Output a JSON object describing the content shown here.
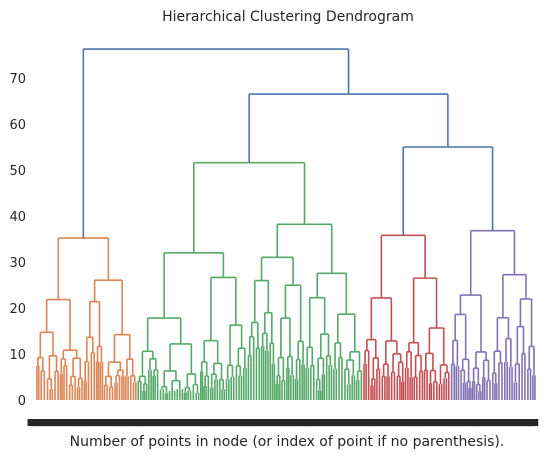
{
  "chart_data": {
    "type": "dendrogram",
    "title": "Hierarchical Clustering Dendrogram",
    "xlabel": "Number of points in node (or index of point if no parenthesis).",
    "ylabel": "",
    "ylim": [
      0,
      77
    ],
    "yticks": [
      0,
      10,
      20,
      30,
      40,
      50,
      60,
      70
    ],
    "grid": false,
    "colors": {
      "above_threshold": "#4c72b0",
      "cluster_1": "#dd8452",
      "cluster_2": "#55a868",
      "cluster_3": "#c44e52",
      "cluster_4": "#8172b3"
    },
    "top_merges": [
      {
        "children": [
          "cluster_1",
          "root_right"
        ],
        "height": 76.3
      },
      {
        "children": [
          "cluster_2",
          "cluster_3_4"
        ],
        "height": 66.5
      },
      {
        "children": [
          "cluster_3",
          "cluster_4"
        ],
        "height": 55.0
      }
    ],
    "clusters": [
      {
        "id": "cluster_1",
        "color": "cluster_1",
        "root_height": 35.2,
        "sub_merges": [
          27.0,
          25.4,
          19.0,
          16.0,
          14.0,
          12.0,
          8.0
        ],
        "leaf_span": [
          36,
          137
        ]
      },
      {
        "id": "cluster_2",
        "color": "cluster_2",
        "root_height": 51.6,
        "sub_merges": [
          44.3,
          35.7,
          29.1,
          28.3,
          27.3,
          25.1,
          20.9,
          17.0,
          15.5,
          13.0,
          8.0
        ],
        "leaf_span": [
          137,
          363
        ]
      },
      {
        "id": "cluster_3",
        "color": "cluster_3",
        "root_height": 35.8,
        "sub_merges": [
          25.2,
          20.0,
          16.0,
          12.0,
          8.0
        ],
        "leaf_span": [
          363,
          450
        ]
      },
      {
        "id": "cluster_4",
        "color": "cluster_4",
        "root_height": 36.8,
        "sub_merges": [
          24.0,
          22.5,
          20.0,
          15.0,
          10.0,
          6.0
        ],
        "leaf_span": [
          450,
          536
        ]
      }
    ]
  }
}
